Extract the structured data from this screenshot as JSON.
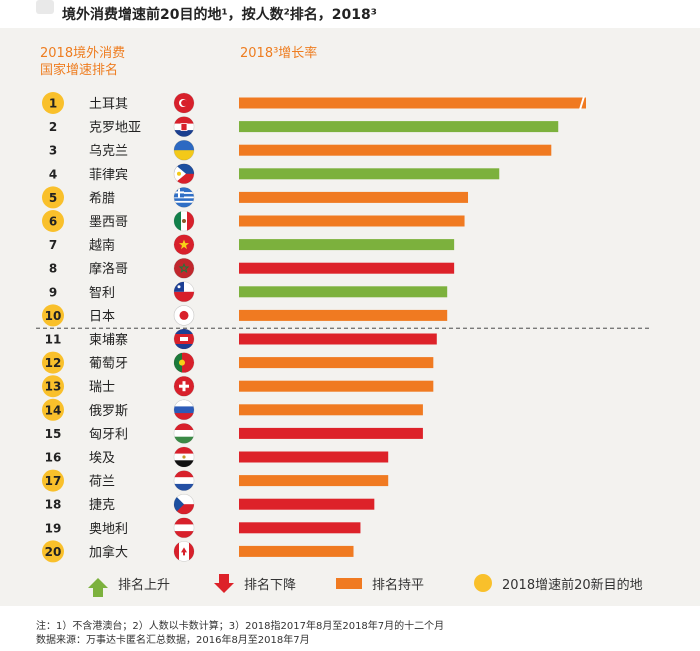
{
  "title": "境外消费增速前20目的地¹，按人数²排名，2018³",
  "headers": {
    "rank_line1": "2018境外消费",
    "rank_line2": "国家增速排名",
    "growth": "2018³增长率"
  },
  "legend": {
    "up": "排名上升",
    "down": "排名下降",
    "flat": "排名持平",
    "new": "2018增速前20新目的地"
  },
  "colors": {
    "up": "#7cb13d",
    "down": "#dd2229",
    "flat": "#f07a21",
    "new_badge": "#f9c02b",
    "header_text": "#ee7d20"
  },
  "notes": {
    "line1": "注：1）不含港澳台；2）人数以卡数计算；3）2018指2017年8月至2018年7月的十二个月",
    "line2": "数据来源：万事达卡匿名汇总数据，2016年8月至2018年7月"
  },
  "chart_data": {
    "type": "bar",
    "orientation": "horizontal",
    "value_axis_labels": false,
    "scale_break_on_first_bar": true,
    "divider_after_rank": 10,
    "categories": [
      "土耳其",
      "克罗地亚",
      "乌克兰",
      "菲律宾",
      "希腊",
      "墨西哥",
      "越南",
      "摩洛哥",
      "智利",
      "日本",
      "柬埔寨",
      "葡萄牙",
      "瑞士",
      "俄罗斯",
      "匈牙利",
      "埃及",
      "荷兰",
      "捷克",
      "奥地利",
      "加拿大"
    ],
    "ranks": [
      1,
      2,
      3,
      4,
      5,
      6,
      7,
      8,
      9,
      10,
      11,
      12,
      13,
      14,
      15,
      16,
      17,
      18,
      19,
      20
    ],
    "values": [
      1.0,
      0.92,
      0.9,
      0.75,
      0.66,
      0.65,
      0.62,
      0.62,
      0.6,
      0.6,
      0.57,
      0.56,
      0.56,
      0.53,
      0.53,
      0.43,
      0.43,
      0.39,
      0.35,
      0.33
    ],
    "status": [
      "flat",
      "up",
      "flat",
      "up",
      "flat",
      "flat",
      "up",
      "down",
      "up",
      "flat",
      "down",
      "flat",
      "flat",
      "flat",
      "down",
      "down",
      "flat",
      "down",
      "down",
      "flat"
    ],
    "new_destination": [
      true,
      false,
      false,
      false,
      true,
      true,
      false,
      false,
      false,
      true,
      false,
      true,
      true,
      true,
      false,
      false,
      true,
      false,
      false,
      true
    ],
    "flag_icons": [
      "flag-turkey",
      "flag-croatia",
      "flag-ukraine",
      "flag-philippines",
      "flag-greece",
      "flag-mexico",
      "flag-vietnam",
      "flag-morocco",
      "flag-chile",
      "flag-japan",
      "flag-cambodia",
      "flag-portugal",
      "flag-switzerland",
      "flag-russia",
      "flag-hungary",
      "flag-egypt",
      "flag-netherlands",
      "flag-czech",
      "flag-austria",
      "flag-canada"
    ]
  }
}
